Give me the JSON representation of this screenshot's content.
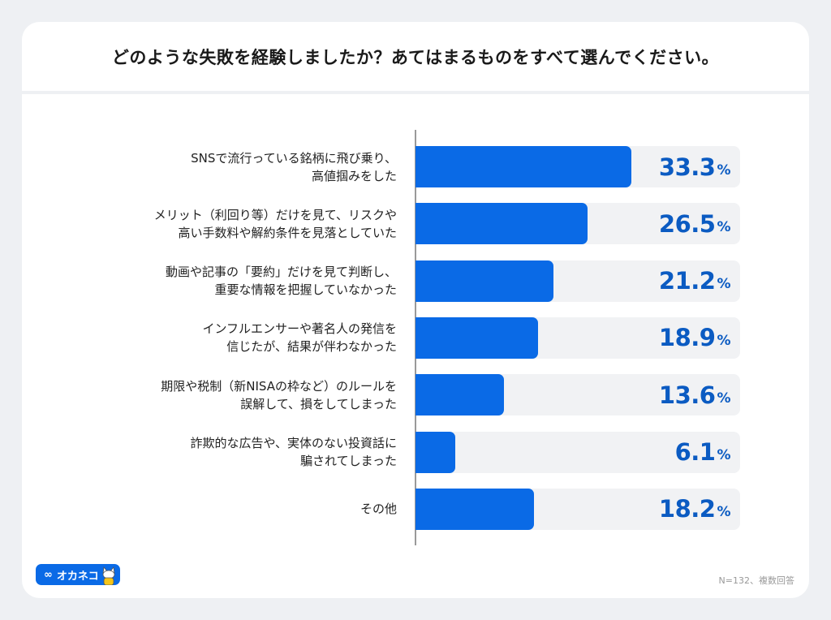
{
  "chart_data": {
    "type": "bar",
    "orientation": "horizontal",
    "title": "どのような失敗を経験しましたか？あてはまるものをすべて選んでください。",
    "categories": [
      [
        "SNSで流行っている銘柄に飛び乗り、",
        "高値掴みをした"
      ],
      [
        "メリット（利回り等）だけを見て、リスクや",
        "高い手数料や解約条件を見落としていた"
      ],
      [
        "動画や記事の「要約」だけを見て判断し、",
        "重要な情報を把握していなかった"
      ],
      [
        "インフルエンサーや著名人の発信を",
        "信じたが、結果が伴わなかった"
      ],
      [
        "期限や税制（新NISAの枠など）のルールを",
        "誤解して、損をしてしまった"
      ],
      [
        "詐欺的な広告や、実体のない投資話に",
        "騙されてしまった"
      ],
      [
        "その他"
      ]
    ],
    "values": [
      33.3,
      26.5,
      21.2,
      18.9,
      13.6,
      6.1,
      18.2
    ],
    "value_labels": [
      "33.3",
      "26.5",
      "21.2",
      "18.9",
      "13.6",
      "6.1",
      "18.2"
    ],
    "unit": "%",
    "xlim": [
      0,
      50
    ],
    "grid": false,
    "colors": {
      "bar": "#0a6ae6",
      "track": "#f1f2f4",
      "value_text": "#0b5bc2"
    }
  },
  "footer": {
    "logo_text": "オカネコ",
    "note": "N=132、複数回答"
  }
}
